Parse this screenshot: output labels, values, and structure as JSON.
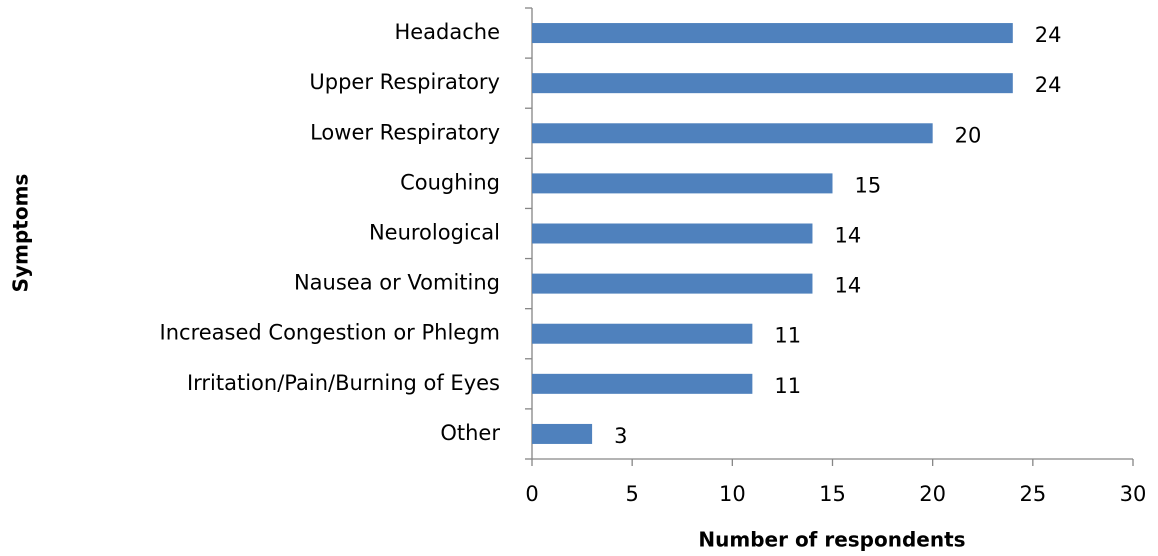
{
  "chart_data": {
    "type": "hbar",
    "categories": [
      "Headache",
      "Upper Respiratory",
      "Lower Respiratory",
      "Coughing",
      "Neurological",
      "Nausea or Vomiting",
      "Increased Congestion or Phlegm",
      "Irritation/Pain/Burning of Eyes",
      "Other"
    ],
    "values": [
      24,
      24,
      20,
      15,
      14,
      14,
      11,
      11,
      3
    ],
    "color": "#4f81bd",
    "x_label": "Number of respondents",
    "y_label": "Symptoms",
    "xlim": [
      0,
      30
    ],
    "xticks": [
      0,
      5,
      10,
      15,
      20,
      25,
      30
    ],
    "grid": false,
    "value_labels_shown": true
  }
}
